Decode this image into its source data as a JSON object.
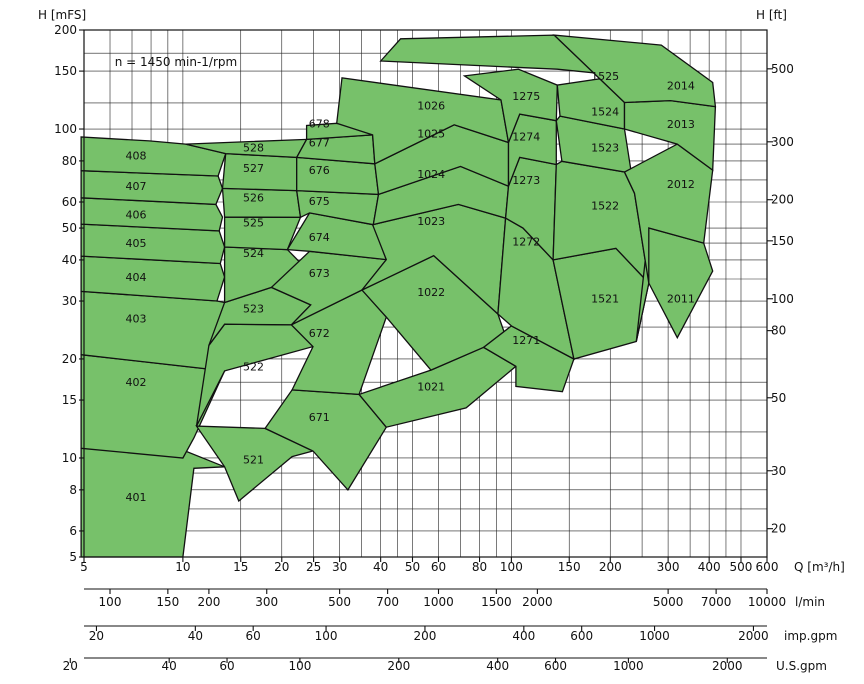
{
  "chart_data": {
    "type": "area",
    "title": "",
    "annotation": "n = 1450 min-1/rpm",
    "x_axis": {
      "label": "Q [m³/h]",
      "scale": "log",
      "range": [
        5,
        600
      ],
      "ticks": [
        "5",
        "10",
        "15",
        "20",
        "25",
        "30",
        "40",
        "50",
        "60",
        "80",
        "100",
        "150",
        "200",
        "300",
        "400",
        "500",
        "600"
      ]
    },
    "y_axis_left": {
      "label": "H [mFS]",
      "scale": "log",
      "range": [
        5,
        200
      ],
      "ticks": [
        "5",
        "6",
        "8",
        "10",
        "15",
        "20",
        "30",
        "40",
        "50",
        "60",
        "80",
        "100",
        "150",
        "200"
      ]
    },
    "y_axis_right": {
      "label": "H [ft]",
      "ticks": [
        "20",
        "30",
        "50",
        "80",
        "100",
        "150",
        "200",
        "300",
        "500"
      ]
    },
    "secondary_x_axes": [
      {
        "label": "l/min",
        "ticks": [
          "100",
          "150",
          "200",
          "300",
          "500",
          "700",
          "1000",
          "1500",
          "2000",
          "5000",
          "7000",
          "10000"
        ]
      },
      {
        "label": "imp.gpm",
        "ticks": [
          "20",
          "40",
          "60",
          "100",
          "200",
          "400",
          "600",
          "1000",
          "2000"
        ]
      },
      {
        "label": "U.S.gpm",
        "ticks": [
          "20",
          "40",
          "60",
          "100",
          "200",
          "400",
          "600",
          "1000",
          "2000"
        ]
      }
    ],
    "grid": true,
    "regions": [
      {
        "name": "401",
        "label_at": [
          7.2,
          7.6
        ],
        "q": [
          4.9,
          10,
          10.8,
          13.4,
          9.7,
          4.9
        ],
        "h": [
          5,
          5,
          9.3,
          9.4,
          10.7,
          10.7
        ]
      },
      {
        "name": "402",
        "label_at": [
          7.2,
          17
        ],
        "q": [
          4.9,
          10,
          10.8,
          13.4,
          4.9
        ],
        "h": [
          10.7,
          10,
          11.5,
          18.4,
          20.6
        ]
      },
      {
        "name": "403",
        "label_at": [
          7.2,
          26.5
        ],
        "q": [
          4.9,
          13.4,
          13.4,
          12.7,
          4.9
        ],
        "h": [
          20.6,
          18.4,
          29.7,
          30,
          32.1
        ]
      },
      {
        "name": "404",
        "label_at": [
          7.2,
          35.5
        ],
        "q": [
          4.9,
          12.7,
          13.4,
          13,
          4.9
        ],
        "h": [
          32.1,
          30,
          35.5,
          39,
          41.1
        ]
      },
      {
        "name": "405",
        "label_at": [
          7.2,
          45
        ],
        "q": [
          4.9,
          13,
          13.4,
          12.9,
          4.9
        ],
        "h": [
          41.1,
          39,
          43.8,
          49,
          51.4
        ]
      },
      {
        "name": "406",
        "label_at": [
          7.2,
          55
        ],
        "q": [
          4.9,
          12.9,
          13.2,
          12.6,
          4.9
        ],
        "h": [
          51.4,
          49,
          54,
          59,
          61.8
        ]
      },
      {
        "name": "407",
        "label_at": [
          7.2,
          67
        ],
        "q": [
          4.9,
          12.6,
          13.2,
          12.8,
          4.9
        ],
        "h": [
          61.8,
          59,
          66,
          72,
          74.7
        ]
      },
      {
        "name": "408",
        "label_at": [
          7.2,
          83
        ],
        "q": [
          4.9,
          12.8,
          13.5,
          10.2,
          7.9,
          4.9
        ],
        "h": [
          74.7,
          72,
          84.2,
          90,
          92,
          94.6
        ]
      },
      {
        "name": "521",
        "label_at": [
          16.4,
          9.9
        ],
        "q": [
          14.8,
          21.5,
          24.9,
          17.8,
          11,
          13.4
        ],
        "h": [
          7.4,
          10.1,
          10.5,
          12.3,
          12.5,
          9.4
        ]
      },
      {
        "name": "522",
        "label_at": [
          16.4,
          19
        ],
        "q": [
          11,
          13.4,
          24.9,
          21.4,
          13.4,
          12
        ],
        "h": [
          12.5,
          18.4,
          21.8,
          25.4,
          25.5,
          22
        ]
      },
      {
        "name": "523",
        "label_at": [
          16.4,
          28.5
        ],
        "q": [
          12,
          13.4,
          21.4,
          24.5,
          18.6,
          13.4
        ],
        "h": [
          22,
          25.5,
          25.4,
          29.2,
          33,
          29.7
        ]
      },
      {
        "name": "524",
        "label_at": [
          16.4,
          42
        ],
        "q": [
          13.4,
          18.6,
          24.5,
          20.8,
          13.4
        ],
        "h": [
          29.7,
          33,
          36.4,
          43,
          43.8
        ]
      },
      {
        "name": "525",
        "label_at": [
          16.4,
          52
        ],
        "q": [
          13.4,
          20.8,
          22.8,
          13.4
        ],
        "h": [
          43.8,
          43,
          53.9,
          54
        ]
      },
      {
        "name": "526",
        "label_at": [
          16.4,
          62
        ],
        "q": [
          13.4,
          22.8,
          22.2,
          13.2
        ],
        "h": [
          54,
          53.9,
          65,
          66
        ]
      },
      {
        "name": "527",
        "label_at": [
          16.4,
          76
        ],
        "q": [
          13.2,
          22.2,
          22.2,
          13.5
        ],
        "h": [
          66,
          65,
          82,
          84.2
        ]
      },
      {
        "name": "528",
        "label_at": [
          16.4,
          88
        ],
        "q": [
          13.5,
          22.2,
          23.8,
          10.2
        ],
        "h": [
          84.2,
          82,
          93,
          90
        ]
      },
      {
        "name": "671",
        "label_at": [
          26,
          13.3
        ],
        "q": [
          17.8,
          24.9,
          31.8,
          41.6,
          34.4,
          21.5
        ],
        "h": [
          12.3,
          10.5,
          8,
          12.4,
          15.6,
          16.1
        ]
      },
      {
        "name": "672",
        "label_at": [
          26,
          24
        ],
        "q": [
          21.5,
          34.4,
          41.6,
          35.1,
          21.4,
          24.9
        ],
        "h": [
          16.1,
          15.6,
          26.8,
          32.4,
          25.4,
          21.8
        ]
      },
      {
        "name": "673",
        "label_at": [
          26,
          36.5
        ],
        "q": [
          24.5,
          21.4,
          35.1,
          41.6,
          24.3,
          18.6
        ],
        "h": [
          29.2,
          25.4,
          32.4,
          40.1,
          42.5,
          33
        ]
      },
      {
        "name": "674",
        "label_at": [
          26,
          47
        ],
        "q": [
          20.8,
          24.3,
          41.6,
          38,
          24.3
        ],
        "h": [
          43,
          42.5,
          40.1,
          51.2,
          55.6
        ]
      },
      {
        "name": "675",
        "label_at": [
          26,
          60.5
        ],
        "q": [
          22.8,
          24.3,
          38,
          39.4,
          22.2
        ],
        "h": [
          53.9,
          55.6,
          51.2,
          63.3,
          65
        ]
      },
      {
        "name": "676",
        "label_at": [
          26,
          75
        ],
        "q": [
          22.2,
          39.4,
          38.4,
          22.2
        ],
        "h": [
          65,
          63.3,
          78.4,
          82
        ]
      },
      {
        "name": "677",
        "label_at": [
          26,
          91
        ],
        "q": [
          22.2,
          38.4,
          37.8,
          23.8
        ],
        "h": [
          82,
          78.4,
          96,
          93
        ]
      },
      {
        "name": "678",
        "label_at": [
          26,
          104
        ],
        "q": [
          23.8,
          37.8,
          41.7,
          29.4,
          23.8
        ],
        "h": [
          93,
          96,
          103.6,
          104.1,
          102.5
        ]
      },
      {
        "name": "1021",
        "label_at": [
          57,
          16.5
        ],
        "q": [
          41.6,
          34.4,
          56.9,
          82.3,
          103.2,
          72.8
        ],
        "h": [
          12.4,
          15.6,
          18.5,
          21.7,
          19,
          14.2
        ]
      },
      {
        "name": "1022",
        "label_at": [
          57,
          32
        ],
        "q": [
          56.9,
          82.3,
          103.2,
          91,
          58,
          35.1,
          41.6
        ],
        "h": [
          18.5,
          21.7,
          19,
          27.4,
          41.2,
          32.4,
          26.8
        ]
      },
      {
        "name": "1023",
        "label_at": [
          57,
          52.5
        ],
        "q": [
          35.1,
          58,
          91,
          96,
          69,
          37.8,
          41.6
        ],
        "h": [
          32.4,
          41.2,
          27.4,
          53.6,
          59,
          51.2,
          40.1
        ]
      },
      {
        "name": "1024",
        "label_at": [
          57,
          73
        ],
        "q": [
          37.8,
          69,
          96,
          98,
          70,
          39.4,
          38
        ],
        "h": [
          51.2,
          59,
          53.6,
          67,
          77,
          63.3,
          51.2
        ]
      },
      {
        "name": "1025",
        "label_at": [
          57,
          97
        ],
        "q": [
          39.4,
          70,
          98,
          98,
          67,
          38.4
        ],
        "h": [
          63.3,
          77,
          67,
          91,
          103,
          78.4
        ]
      },
      {
        "name": "1026",
        "label_at": [
          57,
          118
        ],
        "q": [
          38.4,
          67,
          98,
          93,
          30.5,
          29.4,
          37.8
        ],
        "h": [
          78.4,
          103,
          91,
          122.5,
          143,
          104.1,
          96
        ]
      },
      {
        "name": "1271",
        "label_at": [
          111,
          22.8
        ],
        "q": [
          103.2,
          82.3,
          100,
          155,
          143,
          103.2
        ],
        "h": [
          19,
          21.7,
          25.2,
          20,
          15.9,
          16.5
        ]
      },
      {
        "name": "1272",
        "label_at": [
          111,
          45.5
        ],
        "q": [
          91,
          100,
          155,
          134,
          108.5,
          96
        ],
        "h": [
          27.4,
          25.2,
          20,
          40,
          50,
          53.6
        ]
      },
      {
        "name": "1273",
        "label_at": [
          111,
          70
        ],
        "q": [
          96,
          108.5,
          134,
          137,
          106,
          98
        ],
        "h": [
          53.6,
          50,
          40,
          78,
          82,
          67
        ]
      },
      {
        "name": "1274",
        "label_at": [
          111,
          95
        ],
        "q": [
          98,
          106,
          137,
          137,
          106,
          98
        ],
        "h": [
          67,
          82,
          78,
          106,
          111,
          91
        ]
      },
      {
        "name": "1275",
        "label_at": [
          111,
          126
        ],
        "q": [
          98,
          106,
          137,
          138,
          105,
          72,
          93
        ],
        "h": [
          91,
          111,
          106,
          136,
          152,
          145,
          122.5
        ]
      },
      {
        "name": "1521",
        "label_at": [
          193,
          30.5
        ],
        "q": [
          134,
          155,
          240,
          262,
          208,
          134
        ],
        "h": [
          40,
          20,
          22.6,
          34,
          43.4,
          40
        ]
      },
      {
        "name": "1522",
        "label_at": [
          193,
          58.5
        ],
        "q": [
          137,
          134,
          208,
          262,
          237,
          221,
          142.5
        ],
        "h": [
          78,
          40,
          43.4,
          34,
          63.8,
          74,
          79.8
        ]
      },
      {
        "name": "1523",
        "label_at": [
          193,
          88
        ],
        "q": [
          137,
          142.5,
          221,
          237,
          221,
          140.6
        ],
        "h": [
          106,
          79.8,
          74,
          63.8,
          100,
          109.5
        ]
      },
      {
        "name": "1524",
        "label_at": [
          193,
          113
        ],
        "q": [
          138,
          140.6,
          221,
          221,
          216,
          138
        ],
        "h": [
          136,
          109.5,
          100,
          120.4,
          145.3,
          136
        ]
      },
      {
        "name": "1525",
        "label_at": [
          193,
          145
        ],
        "q": [
          103,
          138,
          216,
          221,
          135,
          46,
          40
        ],
        "h": [
          154,
          152,
          145.3,
          120.4,
          193,
          188,
          161
        ]
      },
      {
        "name": "2011",
        "label_at": [
          328,
          30.5
        ],
        "q": [
          240,
          262,
          320,
          410,
          385,
          262
        ],
        "h": [
          22.6,
          34,
          23.2,
          37,
          45,
          50
        ]
      },
      {
        "name": "2012",
        "label_at": [
          328,
          68
        ],
        "q": [
          262,
          237,
          221,
          320,
          410,
          385,
          262
        ],
        "h": [
          34,
          63.8,
          74,
          90,
          75,
          45,
          50
        ]
      },
      {
        "name": "2013",
        "label_at": [
          328,
          103.5
        ],
        "q": [
          221,
          320,
          410,
          418,
          305,
          221
        ],
        "h": [
          100,
          90,
          75,
          117,
          122,
          120.4
        ]
      },
      {
        "name": "2014",
        "label_at": [
          328,
          135.5
        ],
        "q": [
          221,
          305,
          418,
          410,
          286,
          135
        ],
        "h": [
          120.4,
          122,
          117,
          138.5,
          180,
          193
        ]
      }
    ]
  }
}
